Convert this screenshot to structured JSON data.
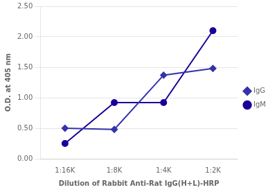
{
  "chart_data": {
    "type": "line",
    "xlabel": "Dilution of Rabbit Anti-Rat IgG(H+L)-HRP",
    "ylabel": "O.D. at 405 nm",
    "categories": [
      "1:16K",
      "1:8K",
      "1:4K",
      "1:2K"
    ],
    "series": [
      {
        "name": "IgG",
        "color": "#3333AA",
        "marker": "diamond",
        "values": [
          0.5,
          0.48,
          1.37,
          1.48
        ]
      },
      {
        "name": "IgM",
        "color": "#1a0099",
        "marker": "circle",
        "values": [
          0.25,
          0.92,
          0.92,
          2.1
        ]
      }
    ],
    "ylim": [
      0.0,
      2.5
    ],
    "yticks": [
      {
        "value": 0,
        "label": "0.00"
      },
      {
        "value": 0.5,
        "label": "0.50"
      },
      {
        "value": 1,
        "label": "1.00"
      },
      {
        "value": 1.5,
        "label": "1.50"
      },
      {
        "value": 2,
        "label": "2.00"
      },
      {
        "value": 2.5,
        "label": "2.50"
      }
    ],
    "grid": true,
    "legend": "right"
  }
}
